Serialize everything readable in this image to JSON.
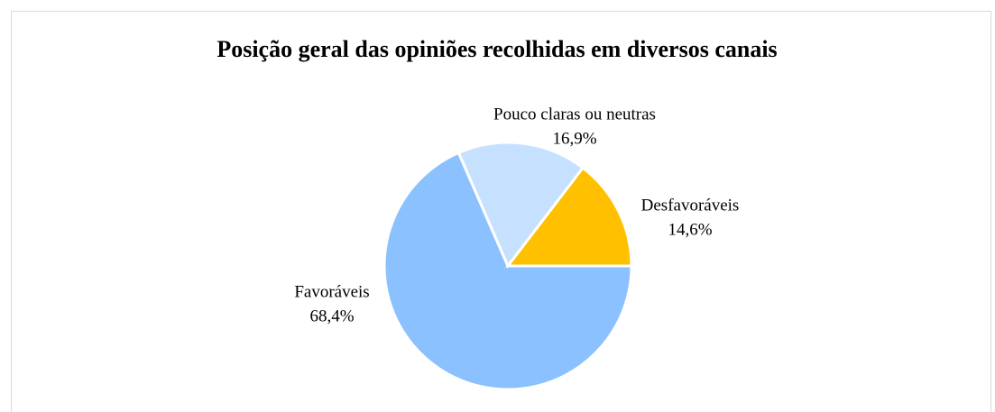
{
  "chart_data": {
    "type": "pie",
    "title": "Posição geral das opiniões recolhidas em diversos canais",
    "categories": [
      "Favoráveis",
      "Pouco claras ou neutras",
      "Desfavoráveis"
    ],
    "values": [
      68.4,
      16.9,
      14.6
    ],
    "value_labels": [
      "68,4%",
      "16,9%",
      "14,6%"
    ],
    "colors": [
      "#8bc1ff",
      "#c6e1ff",
      "#ffc000"
    ]
  }
}
